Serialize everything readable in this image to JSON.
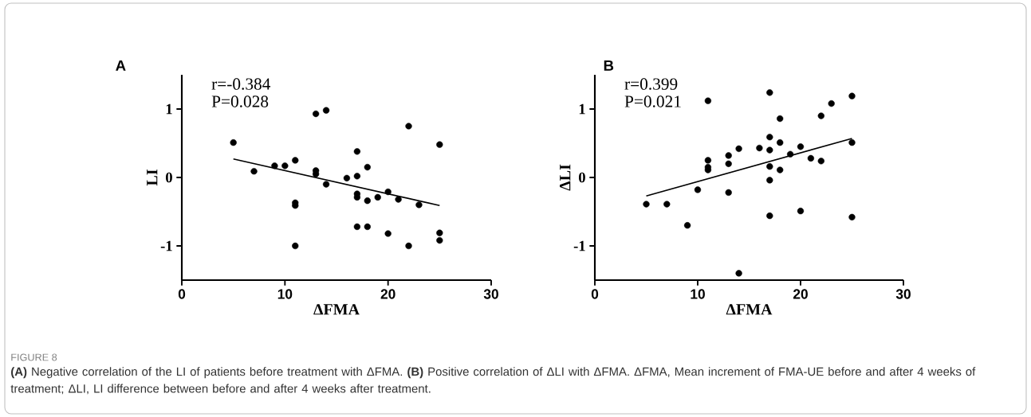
{
  "chart_data": [
    {
      "type": "scatter",
      "xlabel": "ΔFMA",
      "ylabel": "LI",
      "xlim": [
        0,
        30
      ],
      "ylim": [
        -1.5,
        1.5
      ],
      "xticks": [
        0,
        10,
        20,
        30
      ],
      "yticks": [
        -1,
        0,
        1
      ],
      "annotations": [
        "A",
        "r=-0.384",
        "P=0.028"
      ],
      "series": [
        {
          "type": "scatter",
          "marker": "circle",
          "color": "#000000",
          "x": [
            5,
            7,
            9,
            10,
            11,
            11,
            11,
            11,
            13,
            13,
            13,
            14,
            14,
            16,
            17,
            17,
            17,
            17,
            17,
            18,
            18,
            18,
            19,
            20,
            20,
            21,
            22,
            22,
            23,
            25,
            25,
            25
          ],
          "values": [
            0.51,
            0.09,
            0.17,
            0.17,
            0.25,
            -0.37,
            -0.41,
            -1.0,
            0.93,
            0.1,
            0.05,
            0.98,
            -0.1,
            -0.01,
            0.38,
            0.02,
            -0.24,
            -0.29,
            -0.72,
            0.15,
            -0.34,
            -0.72,
            -0.29,
            -0.21,
            -0.82,
            -0.32,
            0.75,
            -1.0,
            -0.4,
            0.48,
            -0.81,
            -0.92
          ]
        },
        {
          "type": "line",
          "marker": "none",
          "color": "#000000",
          "x": [
            5,
            25
          ],
          "values": [
            0.27,
            -0.41
          ]
        }
      ]
    },
    {
      "type": "scatter",
      "xlabel": "ΔFMA",
      "ylabel": "ΔLI",
      "xlim": [
        0,
        30
      ],
      "ylim": [
        -1.5,
        1.5
      ],
      "xticks": [
        0,
        10,
        20,
        30
      ],
      "yticks": [
        -1,
        0,
        1
      ],
      "annotations": [
        "B",
        "r=0.399",
        "P=0.021",
        "FIGURE 8",
        "**(A)** Negative correlation of the LI of patients before treatment with ΔFMA. **(B)** Positive correlation of ΔLI with ΔFMA. ΔFMA, Mean increment of FMA-UE before and after 4 weeks of treatment; ΔLI, LI difference between before and after 4 weeks after treatment."
      ],
      "series": [
        {
          "type": "scatter",
          "marker": "circle",
          "color": "#000000",
          "x": [
            5,
            7,
            9,
            10,
            11,
            11,
            11,
            11,
            13,
            13,
            13,
            14,
            14,
            16,
            17,
            17,
            17,
            17,
            17,
            17,
            18,
            18,
            18,
            19,
            20,
            20,
            21,
            22,
            22,
            23,
            25,
            25,
            25
          ],
          "values": [
            -0.39,
            -0.39,
            -0.7,
            -0.18,
            1.12,
            0.25,
            0.15,
            0.11,
            0.32,
            0.2,
            -0.22,
            0.42,
            -1.4,
            0.43,
            1.24,
            0.59,
            0.4,
            0.16,
            -0.04,
            -0.56,
            0.86,
            0.51,
            0.11,
            0.34,
            0.45,
            -0.49,
            0.28,
            0.9,
            0.24,
            1.08,
            1.19,
            0.51,
            -0.58
          ]
        },
        {
          "type": "line",
          "marker": "none",
          "color": "#000000",
          "x": [
            5,
            25
          ],
          "values": [
            -0.27,
            0.57
          ]
        }
      ]
    }
  ]
}
